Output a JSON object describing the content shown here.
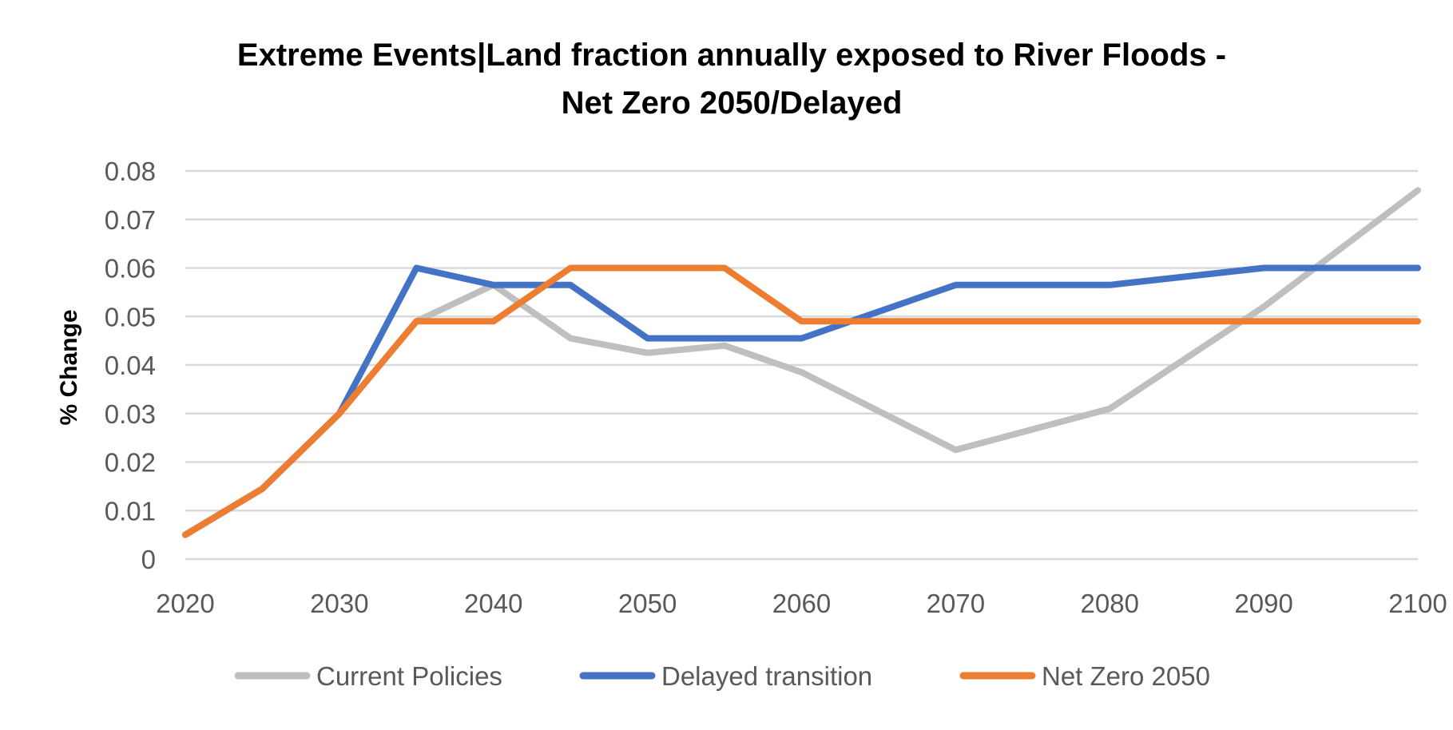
{
  "chart_data": {
    "type": "line",
    "title_lines": [
      "Extreme Events|Land fraction annually exposed to River Floods -",
      "Net Zero 2050/Delayed"
    ],
    "xlabel": "",
    "ylabel": "% Change",
    "x": [
      2020,
      2025,
      2030,
      2035,
      2040,
      2045,
      2050,
      2055,
      2060,
      2070,
      2080,
      2090,
      2100
    ],
    "x_ticks": [
      "2020",
      "2030",
      "2040",
      "2050",
      "2060",
      "2070",
      "2080",
      "2090",
      "2100"
    ],
    "y_ticks": [
      "0",
      "0.01",
      "0.02",
      "0.03",
      "0.04",
      "0.05",
      "0.06",
      "0.07",
      "0.08"
    ],
    "ylim": [
      0,
      0.08
    ],
    "xlim": [
      2020,
      2100
    ],
    "grid": true,
    "legend_position": "bottom",
    "series": [
      {
        "name": "Current Policies",
        "color": "#BFBFBF",
        "values": [
          0.005,
          0.0145,
          0.03,
          0.049,
          0.0565,
          0.0455,
          0.0425,
          0.044,
          0.0385,
          0.0225,
          0.031,
          0.052,
          0.076
        ]
      },
      {
        "name": "Delayed transition",
        "color": "#4472C4",
        "values": [
          0.005,
          0.0145,
          0.03,
          0.06,
          0.0565,
          0.0565,
          0.0455,
          0.0455,
          0.0455,
          0.0565,
          0.0565,
          0.06,
          0.06
        ]
      },
      {
        "name": "Net Zero 2050",
        "color": "#ED7D31",
        "values": [
          0.005,
          0.0145,
          0.03,
          0.049,
          0.049,
          0.06,
          0.06,
          0.06,
          0.049,
          0.049,
          0.049,
          0.049,
          0.049
        ]
      }
    ]
  }
}
